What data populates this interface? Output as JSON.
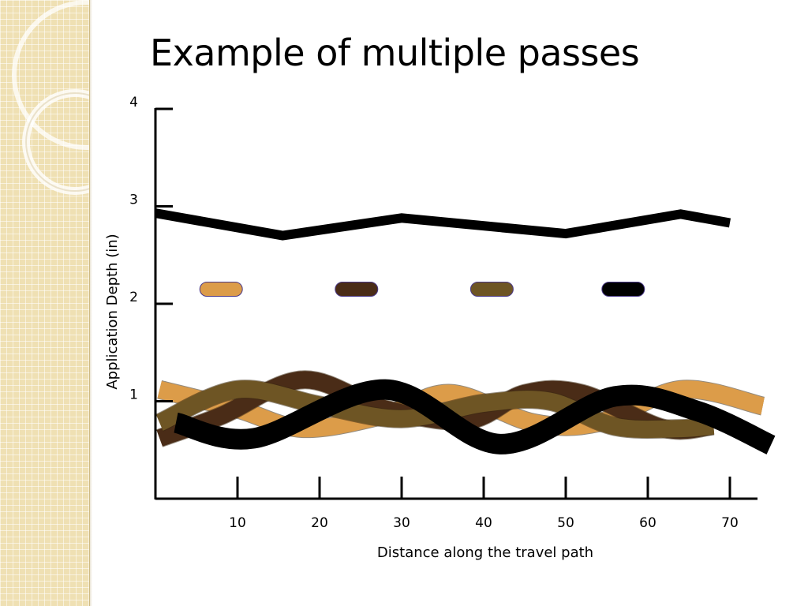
{
  "slide": {
    "title": "Example of multiple passes"
  },
  "colors": {
    "pass_1": "#dc9c49",
    "pass_2": "#4a2c17",
    "pass_3": "#6e5524",
    "pass_4": "#000000",
    "overall_line": "#000000",
    "background_strip": "#efe0b3"
  },
  "chart_data": {
    "type": "line",
    "title": "",
    "xlabel": "Distance along the travel path",
    "ylabel": "Application Depth (in)",
    "xlim": [
      0,
      74
    ],
    "ylim": [
      0,
      4
    ],
    "x_ticks": [
      10,
      20,
      30,
      40,
      50,
      60,
      70
    ],
    "y_ticks": [
      1,
      2,
      3,
      4
    ],
    "grid": false,
    "legend": {
      "placement": "center",
      "entries": [
        {
          "series_index": 0,
          "x": 8,
          "y": 2.15
        },
        {
          "series_index": 1,
          "x": 24.5,
          "y": 2.15
        },
        {
          "series_index": 2,
          "x": 41,
          "y": 2.15
        },
        {
          "series_index": 3,
          "x": 57,
          "y": 2.15
        }
      ]
    },
    "series": [
      {
        "color": "#dc9c49",
        "points": [
          [
            0.5,
            1.12
          ],
          [
            10,
            0.92
          ],
          [
            18,
            0.72
          ],
          [
            28,
            0.86
          ],
          [
            36,
            1.08
          ],
          [
            46,
            0.78
          ],
          [
            54,
            0.78
          ],
          [
            64,
            1.12
          ],
          [
            74,
            0.95
          ]
        ]
      },
      {
        "color": "#4a2c17",
        "points": [
          [
            0.5,
            0.62
          ],
          [
            8,
            0.85
          ],
          [
            18,
            1.22
          ],
          [
            28,
            0.92
          ],
          [
            38,
            0.8
          ],
          [
            45,
            1.08
          ],
          [
            52,
            1.08
          ],
          [
            62,
            0.72
          ],
          [
            68,
            0.75
          ]
        ]
      },
      {
        "color": "#6e5524",
        "points": [
          [
            0.5,
            0.78
          ],
          [
            10,
            1.12
          ],
          [
            20,
            0.96
          ],
          [
            30,
            0.82
          ],
          [
            40,
            0.98
          ],
          [
            48,
            1.0
          ],
          [
            56,
            0.74
          ],
          [
            64,
            0.72
          ],
          [
            68,
            0.75
          ]
        ]
      },
      {
        "color": "#000000",
        "points": [
          [
            2.5,
            0.78
          ],
          [
            12,
            0.62
          ],
          [
            28,
            1.12
          ],
          [
            42,
            0.56
          ],
          [
            56,
            1.05
          ],
          [
            66,
            0.9
          ],
          [
            75,
            0.55
          ]
        ]
      },
      {
        "color": "#000000",
        "points": [
          [
            0,
            2.93
          ],
          [
            15.5,
            2.7
          ],
          [
            30,
            2.88
          ],
          [
            50,
            2.72
          ],
          [
            64,
            2.92
          ],
          [
            70,
            2.83
          ]
        ]
      }
    ]
  }
}
